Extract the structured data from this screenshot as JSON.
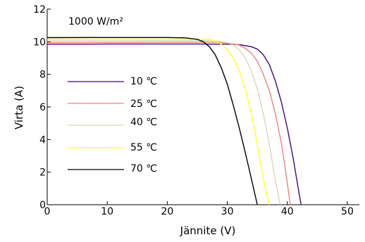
{
  "chart_data": {
    "type": "line",
    "title": "",
    "annotation": "1000 W/m²",
    "xlabel": "Jännite (V)",
    "ylabel": "Virta (A)",
    "xlim": [
      0,
      52
    ],
    "ylim": [
      0,
      12
    ],
    "xticks": [
      0,
      10,
      20,
      30,
      40,
      50
    ],
    "yticks": [
      0,
      2,
      4,
      6,
      8,
      10,
      12
    ],
    "grid": false,
    "legend_position": "left-center",
    "series": [
      {
        "name": "10 ℃",
        "color": "#3d0a78",
        "x": [
          0,
          10,
          20,
          25,
          30,
          32,
          34,
          35,
          36,
          37,
          38,
          39,
          40,
          41,
          41.5,
          42,
          42.3
        ],
        "y": [
          9.85,
          9.86,
          9.86,
          9.86,
          9.85,
          9.82,
          9.7,
          9.55,
          9.2,
          8.6,
          7.6,
          6.3,
          4.7,
          2.8,
          1.7,
          0.6,
          0
        ]
      },
      {
        "name": "25 ℃",
        "color": "#f08080",
        "x": [
          0,
          10,
          20,
          25,
          28,
          30,
          32,
          33,
          34,
          35,
          36,
          37,
          38,
          39,
          39.5,
          40,
          40.5
        ],
        "y": [
          9.95,
          9.96,
          9.97,
          9.97,
          9.97,
          9.93,
          9.8,
          9.6,
          9.3,
          8.8,
          8.0,
          7.0,
          5.6,
          3.8,
          2.6,
          1.3,
          0
        ]
      },
      {
        "name": "40 ℃",
        "color": "#d8d8b8",
        "x": [
          0,
          10,
          20,
          25,
          28,
          30,
          31,
          32,
          33,
          34,
          35,
          36,
          37,
          37.5,
          38,
          38.5,
          38.8
        ],
        "y": [
          10.05,
          10.06,
          10.07,
          10.07,
          10.06,
          9.95,
          9.8,
          9.5,
          9.0,
          8.2,
          7.1,
          5.6,
          3.7,
          2.6,
          1.5,
          0.6,
          0
        ]
      },
      {
        "name": "55 ℃",
        "color": "#ffff33",
        "x": [
          0,
          10,
          20,
          24,
          27,
          28,
          29,
          30,
          31,
          32,
          33,
          34,
          35,
          35.5,
          36,
          36.5,
          37
        ],
        "y": [
          10.15,
          10.16,
          10.16,
          10.16,
          10.13,
          10.05,
          9.85,
          9.5,
          9.0,
          8.2,
          7.1,
          5.6,
          3.7,
          2.6,
          1.6,
          0.7,
          0
        ]
      },
      {
        "name": "70 ℃",
        "color": "#000000",
        "x": [
          0,
          10,
          20,
          23,
          25,
          26,
          27,
          28,
          29,
          30,
          31,
          32,
          33,
          33.5,
          34,
          34.5,
          35
        ],
        "y": [
          10.25,
          10.26,
          10.26,
          10.24,
          10.15,
          10.0,
          9.7,
          9.2,
          8.4,
          7.4,
          6.1,
          4.7,
          3.2,
          2.4,
          1.6,
          0.8,
          0
        ]
      }
    ]
  }
}
